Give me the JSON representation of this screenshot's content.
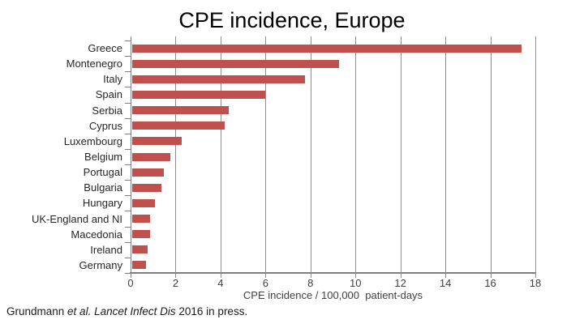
{
  "footer": {
    "segments": [
      "Grundmann ",
      "et al. ",
      "Lancet Infect Dis",
      " 2016 in press."
    ]
  },
  "chart_data": {
    "type": "bar",
    "orientation": "horizontal",
    "title": "CPE incidence, Europe",
    "xlabel": "CPE incidence / 100,000  patient-days",
    "xlim": [
      0,
      18
    ],
    "xtick_step": 2,
    "grid": true,
    "legend": "none",
    "bar_color": "#c0504d",
    "gridline_color": "#8e8e8e",
    "axis_color": "#7f7f7f",
    "categories": [
      "Greece",
      "Montenegro",
      "Italy",
      "Spain",
      "Serbia",
      "Cyprus",
      "Luxembourg",
      "Belgium",
      "Portugal",
      "Bulgaria",
      "Hungary",
      "UK-England and NI",
      "Macedonia",
      "Ireland",
      "Germany"
    ],
    "values": [
      17.3,
      9.2,
      7.7,
      5.9,
      4.3,
      4.1,
      2.2,
      1.7,
      1.4,
      1.3,
      1.0,
      0.8,
      0.8,
      0.7,
      0.6
    ]
  }
}
